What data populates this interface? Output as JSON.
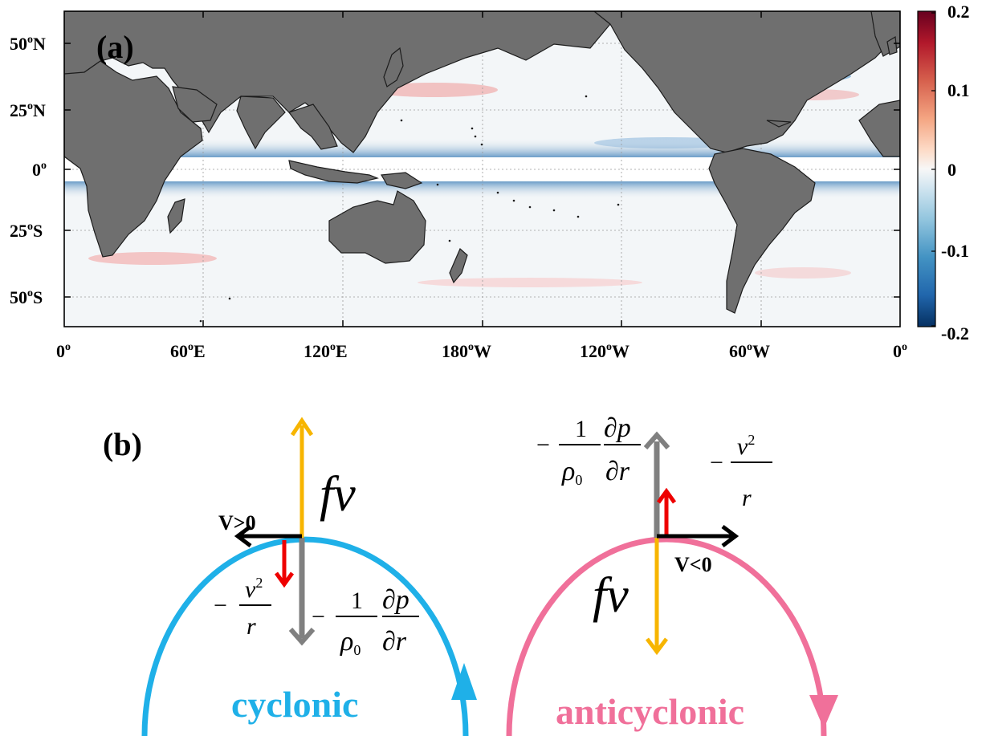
{
  "panel_a": {
    "label": "(a)",
    "lat_ticks": [
      "50",
      "N",
      "25",
      "N",
      "0",
      "",
      "25",
      "S",
      "50",
      "S"
    ],
    "lat_labels": [
      {
        "deg": "50",
        "hemi": "N"
      },
      {
        "deg": "25",
        "hemi": "N"
      },
      {
        "deg": "0",
        "hemi": ""
      },
      {
        "deg": "25",
        "hemi": "S"
      },
      {
        "deg": "50",
        "hemi": "S"
      }
    ],
    "lon_labels": [
      {
        "deg": "0",
        "dir": ""
      },
      {
        "deg": "60",
        "dir": "E"
      },
      {
        "deg": "120",
        "dir": "E"
      },
      {
        "deg": "180",
        "dir": "W"
      },
      {
        "deg": "120",
        "dir": "W"
      },
      {
        "deg": "60",
        "dir": "W"
      },
      {
        "deg": "0",
        "dir": ""
      }
    ],
    "colorbar": {
      "ticks": [
        "0.2",
        "0.1",
        "0",
        "-0.1",
        "-0.2"
      ],
      "max": 0.2,
      "min": -0.2,
      "colors": [
        "#67001f",
        "#b2182b",
        "#d6604d",
        "#f4a582",
        "#fddbc7",
        "#f7f7f7",
        "#d1e5f0",
        "#92c5de",
        "#4393c3",
        "#2166ac",
        "#053061"
      ]
    },
    "land_color": "#6f6f6f",
    "ocean_color": "#f3f6f8"
  },
  "panel_b": {
    "label": "(b)",
    "cyclonic": {
      "label": "cyclonic",
      "color": "#1fb0e8",
      "velocity_label": "V>0",
      "coriolis": "fv",
      "centrifugal_num": "v",
      "centrifugal_exp": "2",
      "centrifugal_den": "r",
      "pressure_num": "1",
      "pressure_den_rho": "ρ",
      "pressure_den_sub": "0",
      "pressure_dp": "∂p",
      "pressure_dr": "∂r",
      "minus": "−"
    },
    "anticyclonic": {
      "label": "anticyclonic",
      "color": "#f0709a",
      "velocity_label": "V<0",
      "coriolis": "fv",
      "centrifugal_num": "v",
      "centrifugal_exp": "2",
      "centrifugal_den": "r",
      "pressure_num": "1",
      "pressure_den_rho": "ρ",
      "pressure_den_sub": "0",
      "pressure_dp": "∂p",
      "pressure_dr": "∂r",
      "minus": "−"
    },
    "arrow_colors": {
      "coriolis": "#f7b500",
      "pressure": "#808080",
      "centrifugal": "#ee0000",
      "velocity": "#000000"
    }
  }
}
